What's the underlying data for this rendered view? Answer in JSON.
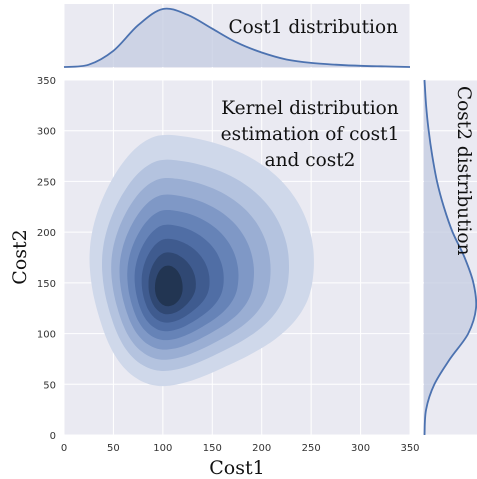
{
  "chart_data": {
    "type": "kde-joint",
    "xlabel": "Cost1",
    "ylabel": "Cost2",
    "xlim": [
      0,
      350
    ],
    "ylim": [
      0,
      350
    ],
    "x_ticks": [
      "0",
      "50",
      "100",
      "150",
      "200",
      "250",
      "300",
      "350"
    ],
    "y_ticks": [
      "0",
      "50",
      "100",
      "150",
      "200",
      "250",
      "300",
      "350"
    ],
    "grid": true,
    "annotations": {
      "main": [
        "Kernel distribution",
        "estimation of cost1",
        "and cost2"
      ],
      "top_marginal": "Cost1 distribution",
      "right_marginal": "Cost2 distribution"
    },
    "density_peak": {
      "x": 105,
      "y": 145
    },
    "contour_levels": 9,
    "marginal_x": {
      "x": [
        0,
        25,
        50,
        75,
        100,
        125,
        150,
        175,
        200,
        225,
        250,
        275,
        300,
        325,
        350
      ],
      "density": [
        0.0,
        0.04,
        0.28,
        0.72,
        1.0,
        0.9,
        0.66,
        0.42,
        0.25,
        0.13,
        0.07,
        0.04,
        0.02,
        0.01,
        0.0
      ]
    },
    "marginal_y": {
      "y": [
        0,
        25,
        50,
        75,
        100,
        125,
        150,
        175,
        200,
        225,
        250,
        275,
        300,
        325,
        350
      ],
      "density": [
        0.01,
        0.04,
        0.2,
        0.5,
        0.85,
        1.0,
        0.95,
        0.78,
        0.55,
        0.38,
        0.25,
        0.16,
        0.09,
        0.04,
        0.01
      ]
    },
    "colors": {
      "background": "#eaeaf2",
      "grid": "#ffffff",
      "line": "#4c72b0",
      "marginal_fill": "#c3cbe0",
      "contour_fills": [
        "#cfd8ea",
        "#b4c3df",
        "#9aaed3",
        "#7f98c6",
        "#6683b7",
        "#506ea5",
        "#3f5b8f",
        "#304873",
        "#223552",
        "#16223a"
      ]
    }
  }
}
